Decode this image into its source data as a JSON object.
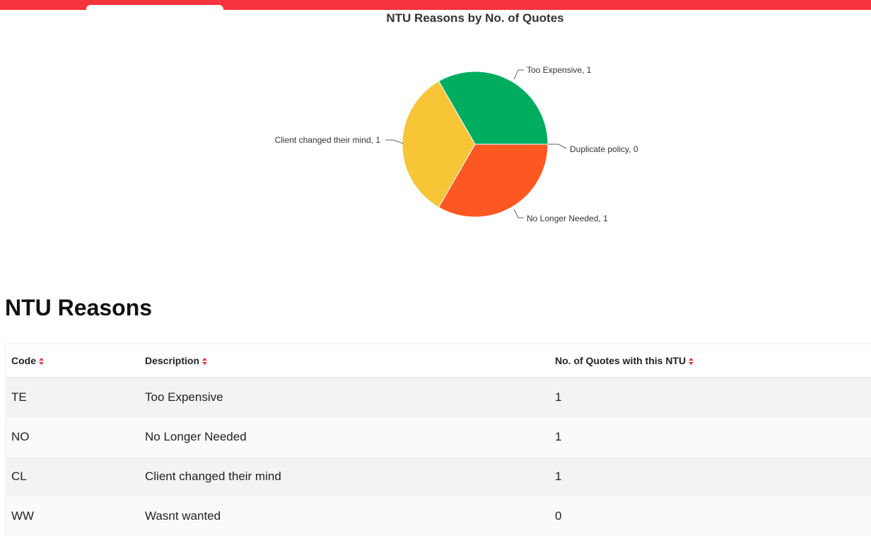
{
  "chart_data": {
    "type": "pie",
    "title": "NTU Reasons by No. of Quotes",
    "categories": [
      "Too Expensive",
      "No Longer Needed",
      "Client changed their mind",
      "Duplicate policy"
    ],
    "values": [
      1,
      1,
      1,
      0
    ],
    "colors": [
      "#00ad5f",
      "#ff5722",
      "#f8c537",
      "#7a9de0"
    ],
    "labels": [
      "Too Expensive, 1",
      "No Longer Needed, 1",
      "Client changed their mind, 1",
      "Duplicate policy, 0"
    ]
  },
  "section": {
    "title": "NTU Reasons"
  },
  "table": {
    "headers": [
      "Code",
      "Description",
      "No. of Quotes with this NTU"
    ],
    "rows": [
      [
        "TE",
        "Too Expensive",
        "1"
      ],
      [
        "NO",
        "No Longer Needed",
        "1"
      ],
      [
        "CL",
        "Client changed their mind",
        "1"
      ],
      [
        "WW",
        "Wasnt wanted",
        "0"
      ]
    ]
  },
  "theme": {
    "brand_color": "#f5333f",
    "sort_icon": "sort-up-down-icon"
  }
}
